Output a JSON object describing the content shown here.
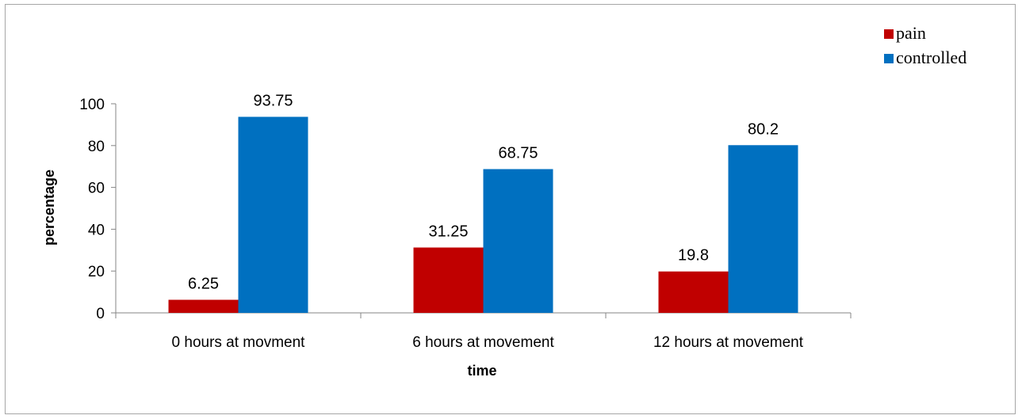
{
  "chart_data": {
    "type": "bar",
    "title": "",
    "xlabel": "time",
    "ylabel": "percentage",
    "categories": [
      "0 hours at movment",
      "6 hours at movement",
      "12 hours at movement"
    ],
    "series": [
      {
        "name": "pain",
        "color": "#c00000",
        "values": [
          6.25,
          31.25,
          19.8
        ]
      },
      {
        "name": "controlled",
        "color": "#0070c0",
        "values": [
          93.75,
          68.75,
          80.2
        ]
      }
    ],
    "value_labels": [
      [
        "6.25",
        "31.25",
        "19.8"
      ],
      [
        "93.75",
        "68.75",
        "80.2"
      ]
    ],
    "ylim": [
      0,
      100
    ],
    "yticks": [
      0,
      20,
      40,
      60,
      80,
      100
    ],
    "grid": false,
    "legend_position": "top-right"
  }
}
